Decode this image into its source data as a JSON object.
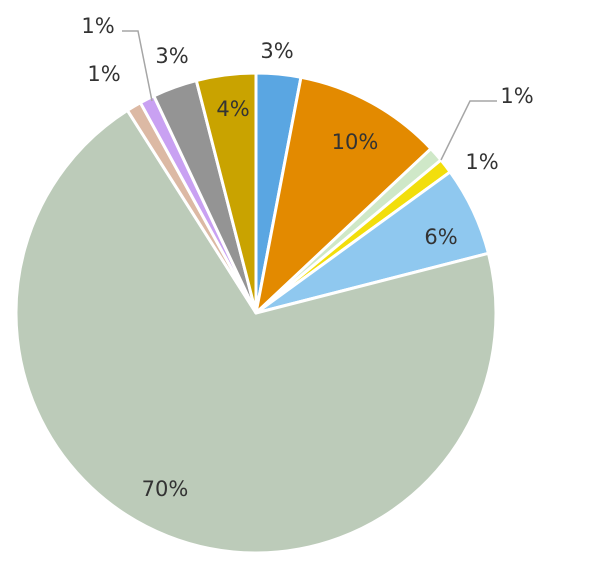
{
  "chart_data": {
    "type": "pie",
    "values": [
      3,
      10,
      1,
      1,
      6,
      70,
      1,
      1,
      3,
      4
    ],
    "value_labels": [
      "3%",
      "10%",
      "1%",
      "1%",
      "6%",
      "70%",
      "1%",
      "1%",
      "3%",
      "4%"
    ],
    "colors": [
      "#5aa6e2",
      "#e38a00",
      "#cfe8c8",
      "#f2de0c",
      "#8fc8ef",
      "#bccbb9",
      "#dcb9a4",
      "#c9a1f2",
      "#949494",
      "#c9a300"
    ]
  }
}
